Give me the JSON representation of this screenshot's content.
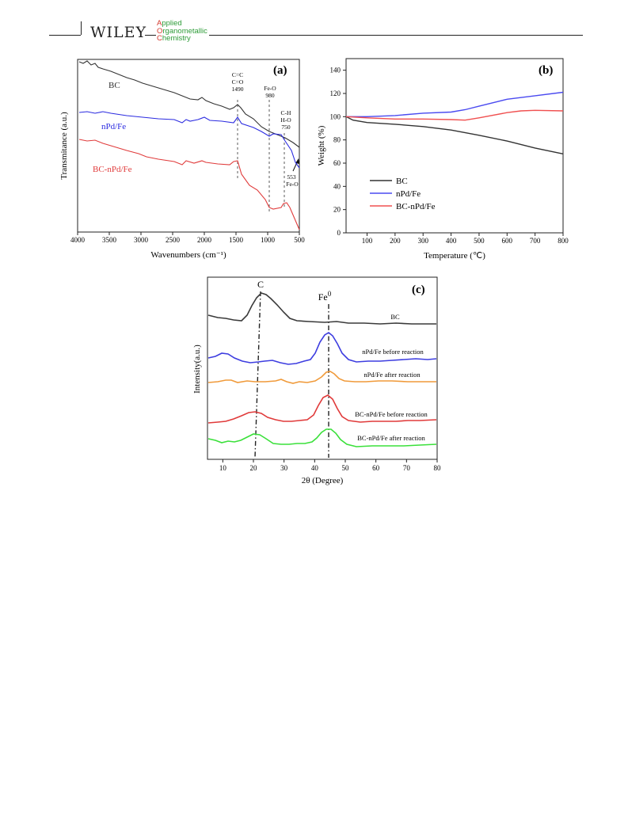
{
  "header": {
    "publisher": "WILEY",
    "journal_lines": [
      {
        "cap": "A",
        "rest": "pplied"
      },
      {
        "cap": "O",
        "rest": "rganometallic"
      },
      {
        "cap": "C",
        "rest": "hemistry"
      }
    ]
  },
  "chart_data": [
    {
      "type": "line",
      "panel_label": "(a)",
      "xlabel": "Wavenumbers (cm⁻¹)",
      "ylabel": "Transmitance (a.u.)",
      "xlim": [
        4000,
        500
      ],
      "x_reversed": true,
      "x_ticks": [
        "4000",
        "3500",
        "3000",
        "2500",
        "2000",
        "1500",
        "1000",
        "500"
      ],
      "series": [
        {
          "name": "BC",
          "color": "#333333"
        },
        {
          "name": "nPd/Fe",
          "color": "#2b2be0"
        },
        {
          "name": "BC-nPd/Fe",
          "color": "#e03b3b"
        }
      ],
      "annotations": [
        {
          "text_lines": [
            "C=C",
            "C=O",
            "1490"
          ],
          "x": 1490
        },
        {
          "text_lines": [
            "Fe-O",
            "980"
          ],
          "x": 980
        },
        {
          "text_lines": [
            "C-H",
            "H-O",
            "750"
          ],
          "x": 750
        },
        {
          "text_lines": [
            "553",
            "Fe-O"
          ],
          "x": 553
        }
      ]
    },
    {
      "type": "line",
      "panel_label": "(b)",
      "xlabel": "Temperature (℃)",
      "ylabel": "Weight (%)",
      "xlim": [
        25,
        800
      ],
      "ylim": [
        0,
        150
      ],
      "x_ticks": [
        "100",
        "200",
        "300",
        "400",
        "500",
        "600",
        "700",
        "800"
      ],
      "y_ticks": [
        "0",
        "20",
        "40",
        "60",
        "80",
        "100",
        "120",
        "140"
      ],
      "legend_placement": "lower-left",
      "series": [
        {
          "name": "BC",
          "color": "#333333",
          "x": [
            25,
            50,
            100,
            200,
            300,
            400,
            500,
            600,
            700,
            800
          ],
          "y": [
            100,
            97,
            95,
            93.5,
            91.5,
            88.5,
            84,
            79,
            73,
            68
          ]
        },
        {
          "name": "nPd/Fe",
          "color": "#4a4af0",
          "x": [
            25,
            100,
            200,
            300,
            400,
            450,
            500,
            600,
            700,
            800
          ],
          "y": [
            100,
            100,
            101,
            103,
            104,
            106,
            109,
            115,
            118,
            121
          ]
        },
        {
          "name": "BC-nPd/Fe",
          "color": "#f05050",
          "x": [
            25,
            100,
            200,
            300,
            400,
            450,
            500,
            600,
            650,
            700,
            800
          ],
          "y": [
            100,
            99,
            98,
            98,
            97.5,
            97,
            99,
            103.5,
            105,
            105.5,
            105
          ]
        }
      ]
    },
    {
      "type": "line",
      "panel_label": "(c)",
      "xlabel": "2θ (Degree)",
      "ylabel": "Intensity(a.u.)",
      "xlim": [
        5,
        80
      ],
      "x_ticks": [
        "10",
        "20",
        "30",
        "40",
        "50",
        "60",
        "70",
        "80"
      ],
      "peak_labels": [
        {
          "text": "C",
          "x": 22
        },
        {
          "text": "Fe",
          "sup": "0",
          "x": 44.7
        }
      ],
      "series": [
        {
          "name": "BC",
          "color": "#3a3a3a"
        },
        {
          "name": "nPd/Fe before reaction",
          "color": "#3d3de0"
        },
        {
          "name": "nPd/Fe after reaction",
          "color": "#f09a3a"
        },
        {
          "name": "BC-nPd/Fe before reaction",
          "color": "#e03a3a"
        },
        {
          "name": "BC-nPd/Fe after reaction",
          "color": "#3ae03a"
        }
      ]
    }
  ]
}
